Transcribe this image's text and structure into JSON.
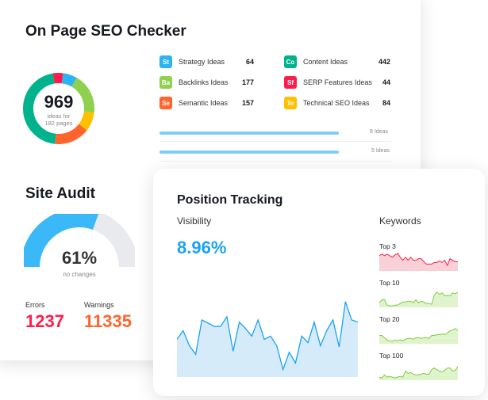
{
  "seo": {
    "title": "On Page SEO Checker",
    "total": "969",
    "total_caption_1": "ideas for",
    "total_caption_2": "182 pages",
    "ideas": [
      {
        "abbr": "St",
        "label": "Strategy Ideas",
        "count": "64",
        "color": "#2bb3f5"
      },
      {
        "abbr": "Ba",
        "label": "Backlinks Ideas",
        "count": "177",
        "color": "#8fd14f"
      },
      {
        "abbr": "Se",
        "label": "Semantic Ideas",
        "count": "157",
        "color": "#ff642d"
      },
      {
        "abbr": "Co",
        "label": "Content Ideas",
        "count": "442",
        "color": "#00b38c"
      },
      {
        "abbr": "Sf",
        "label": "SERP Features Ideas",
        "count": "44",
        "color": "#ff1c4a"
      },
      {
        "abbr": "Te",
        "label": "Technical SEO Ideas",
        "count": "84",
        "color": "#ffc000"
      }
    ],
    "rows": [
      {
        "label": "8 Ideas",
        "fill": 0.78
      },
      {
        "label": "5 Ideas",
        "fill": 0.78
      }
    ]
  },
  "audit": {
    "title": "Site Audit",
    "percent": "61%",
    "percent_value": 61,
    "caption": "no changes",
    "errors_label": "Errors",
    "errors": "1237",
    "warnings_label": "Warnings",
    "warnings": "11335",
    "errors_color": "#ff1c4a",
    "warnings_color": "#ff642d",
    "gauge_color": "#3bb8f8"
  },
  "tracking": {
    "title": "Position Tracking",
    "visibility_label": "Visibility",
    "visibility": "8.96%",
    "keywords_label": "Keywords",
    "visibility_series": [
      35,
      43,
      29,
      21,
      53,
      50,
      47,
      47,
      56,
      24,
      51,
      45,
      38,
      53,
      35,
      38,
      29,
      7,
      23,
      13,
      38,
      32,
      51,
      29,
      43,
      53,
      28,
      70,
      53,
      51
    ],
    "sparklines": [
      {
        "label": "Top 3",
        "color": "#ff1c4a",
        "fill": "#f9d0d6",
        "values": [
          20,
          22,
          20,
          22,
          20,
          18,
          21,
          23,
          18,
          14,
          18,
          14,
          18,
          14,
          14,
          16,
          16,
          12,
          9,
          9,
          9,
          11,
          11,
          13,
          11,
          14,
          7,
          16,
          14,
          12,
          12
        ]
      },
      {
        "label": "Top 10",
        "color": "#7fcc3e",
        "fill": "#dff3cc",
        "values": [
          6,
          10,
          10,
          3,
          2,
          2,
          3,
          3,
          5,
          7,
          7,
          8,
          8,
          6,
          10,
          6,
          8,
          7,
          5,
          5,
          4,
          16,
          20,
          17,
          19,
          15,
          16,
          15,
          19,
          18,
          20
        ]
      },
      {
        "label": "Top 20",
        "color": "#7fcc3e",
        "fill": "#dff3cc",
        "values": [
          11,
          11,
          8,
          5,
          4,
          3,
          5,
          4,
          5,
          4,
          6,
          7,
          7,
          6,
          8,
          8,
          7,
          8,
          8,
          7,
          11,
          11,
          12,
          12,
          13,
          12,
          14,
          17,
          18,
          20,
          18
        ]
      },
      {
        "label": "Top 100",
        "color": "#7fcc3e",
        "fill": "#dff3cc",
        "values": [
          4,
          3,
          7,
          4,
          5,
          4,
          3,
          4,
          5,
          4,
          12,
          9,
          10,
          8,
          7,
          7,
          8,
          9,
          8,
          8,
          14,
          16,
          14,
          12,
          11,
          13,
          16,
          16,
          12,
          13,
          18
        ]
      }
    ]
  }
}
